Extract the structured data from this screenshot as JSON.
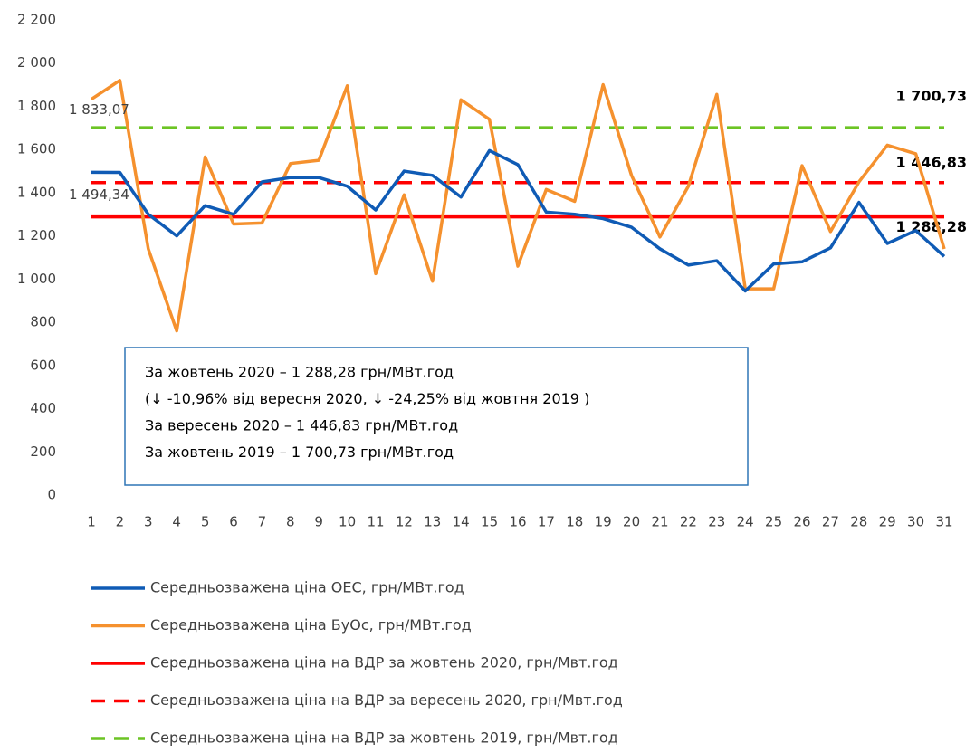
{
  "chart_data": {
    "type": "line",
    "categories": [
      "1",
      "2",
      "3",
      "4",
      "5",
      "6",
      "7",
      "8",
      "9",
      "10",
      "11",
      "12",
      "13",
      "14",
      "15",
      "16",
      "17",
      "18",
      "19",
      "20",
      "21",
      "22",
      "23",
      "24",
      "25",
      "26",
      "27",
      "28",
      "29",
      "30",
      "31"
    ],
    "ylim": [
      0,
      2200
    ],
    "yticks": [
      0,
      200,
      400,
      600,
      800,
      {
        "value": 1000,
        "label": "1 000"
      },
      {
        "value": 1200,
        "label": "1 200"
      },
      {
        "value": 1400,
        "label": "1 400"
      },
      {
        "value": 1600,
        "label": "1 600"
      },
      {
        "value": 1800,
        "label": "1 800"
      },
      {
        "value": 2000,
        "label": "2 000"
      },
      {
        "value": 2200,
        "label": "2 200"
      }
    ],
    "grid": false,
    "series": [
      {
        "name": "Середньозважена ціна ОЕС, грн/МВт.год",
        "color": "#0f5bb5",
        "values": [
          1494.34,
          1494,
          1300,
          1200,
          1340,
          1300,
          1450,
          1470,
          1470,
          1430,
          1320,
          1500,
          1480,
          1380,
          1595,
          1530,
          1310,
          1300,
          1280,
          1240,
          1140,
          1065,
          1085,
          945,
          1070,
          1080,
          1145,
          1355,
          1165,
          1225,
          1105
        ],
        "value_labels": [
          "1 494,34",
          null,
          null,
          null,
          null,
          null,
          null,
          null,
          null,
          null,
          null,
          null,
          null,
          null,
          null,
          null,
          null,
          null,
          null,
          null,
          null,
          null,
          null,
          null,
          null,
          null,
          null,
          null,
          null,
          null,
          null
        ]
      },
      {
        "name": "Середньозважена ціна БуОс, грн/МВт.год",
        "color": "#f5912e",
        "values": [
          1833.07,
          1920,
          1140,
          760,
          1565,
          1255,
          1260,
          1535,
          1550,
          1895,
          1025,
          1390,
          990,
          1830,
          1740,
          1060,
          1415,
          1360,
          1900,
          1480,
          1195,
          1430,
          1855,
          955,
          955,
          1525,
          1220,
          1450,
          1620,
          1580,
          1140
        ],
        "value_labels": [
          "1 833,07",
          null,
          null,
          null,
          null,
          null,
          null,
          null,
          null,
          null,
          null,
          null,
          null,
          null,
          null,
          null,
          null,
          null,
          null,
          null,
          null,
          null,
          null,
          null,
          null,
          null,
          null,
          null,
          null,
          null,
          null
        ]
      }
    ],
    "reference_lines": [
      {
        "name": "Середньозважена ціна на ВДР за жовтень 2020, грн/Мвт.год",
        "color": "#ff0000",
        "dashed": false,
        "value": 1288.28,
        "label": "1 288,28"
      },
      {
        "name": "Середньозважена ціна на ВДР за вересень 2020, грн/Мвт.год",
        "color": "#ff0000",
        "dashed": true,
        "value": 1446.83,
        "label": "1 446,83"
      },
      {
        "name": "Середньозважена ціна на ВДР за жовтень 2019, грн/Мвт.год",
        "color": "#6cc424",
        "dashed": true,
        "value": 1700.73,
        "label": "1 700,73"
      }
    ],
    "text_box": [
      "За жовтень 2020 – 1 288,28 грн/МВт.год",
      "(↓ -10,96% від вересня 2020, ↓ -24,25% від жовтня 2019 )",
      "За вересень 2020 – 1 446,83 грн/МВт.год",
      "За жовтень 2019 – 1 700,73 грн/МВт.год"
    ]
  }
}
